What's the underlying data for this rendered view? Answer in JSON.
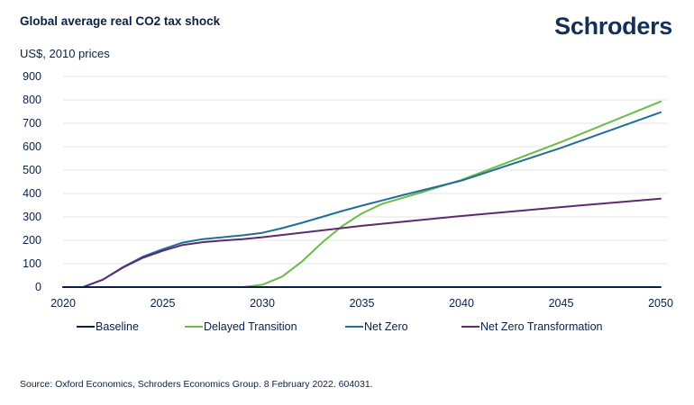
{
  "header": {
    "title": "Global average real CO2 tax shock",
    "brand": "Schroders"
  },
  "footer": {
    "source": "Source: Oxford Economics, Schroders Economics Group. 8 February 2022. 604031."
  },
  "chart_data": {
    "type": "line",
    "title": "Global average real CO2 tax shock",
    "ylabel": "US$, 2010 prices",
    "xlabel": "",
    "xlim": [
      2020,
      2050
    ],
    "ylim": [
      0,
      900
    ],
    "x_ticks": [
      2020,
      2025,
      2030,
      2035,
      2040,
      2045,
      2050
    ],
    "y_ticks": [
      0,
      100,
      200,
      300,
      400,
      500,
      600,
      700,
      800,
      900
    ],
    "grid": "horizontal",
    "legend_position": "bottom",
    "series": [
      {
        "name": "Baseline",
        "color": "#0b1f44",
        "x": [
          2020,
          2050
        ],
        "y": [
          0,
          0
        ]
      },
      {
        "name": "Delayed Transition",
        "color": "#6dbb45",
        "x": [
          2020,
          2029,
          2030,
          2031,
          2032,
          2033,
          2034,
          2035,
          2036,
          2037,
          2038,
          2040,
          2045,
          2050
        ],
        "y": [
          0,
          0,
          10,
          45,
          110,
          190,
          260,
          315,
          355,
          380,
          405,
          458,
          620,
          793
        ]
      },
      {
        "name": "Net Zero",
        "color": "#1f6e98",
        "x": [
          2020,
          2021,
          2022,
          2023,
          2024,
          2025,
          2026,
          2027,
          2028,
          2029,
          2030,
          2031,
          2032,
          2033,
          2034,
          2035,
          2036,
          2037,
          2038,
          2040,
          2045,
          2050
        ],
        "y": [
          0,
          0,
          32,
          85,
          130,
          162,
          190,
          205,
          213,
          221,
          232,
          252,
          275,
          300,
          325,
          348,
          370,
          392,
          413,
          455,
          595,
          747
        ]
      },
      {
        "name": "Net Zero Transformation",
        "color": "#5e2a6e",
        "x": [
          2020,
          2021,
          2022,
          2023,
          2024,
          2025,
          2026,
          2027,
          2028,
          2029,
          2030,
          2035,
          2040,
          2045,
          2050
        ],
        "y": [
          0,
          0,
          32,
          83,
          125,
          155,
          180,
          192,
          199,
          205,
          213,
          262,
          304,
          342,
          378
        ]
      }
    ]
  }
}
